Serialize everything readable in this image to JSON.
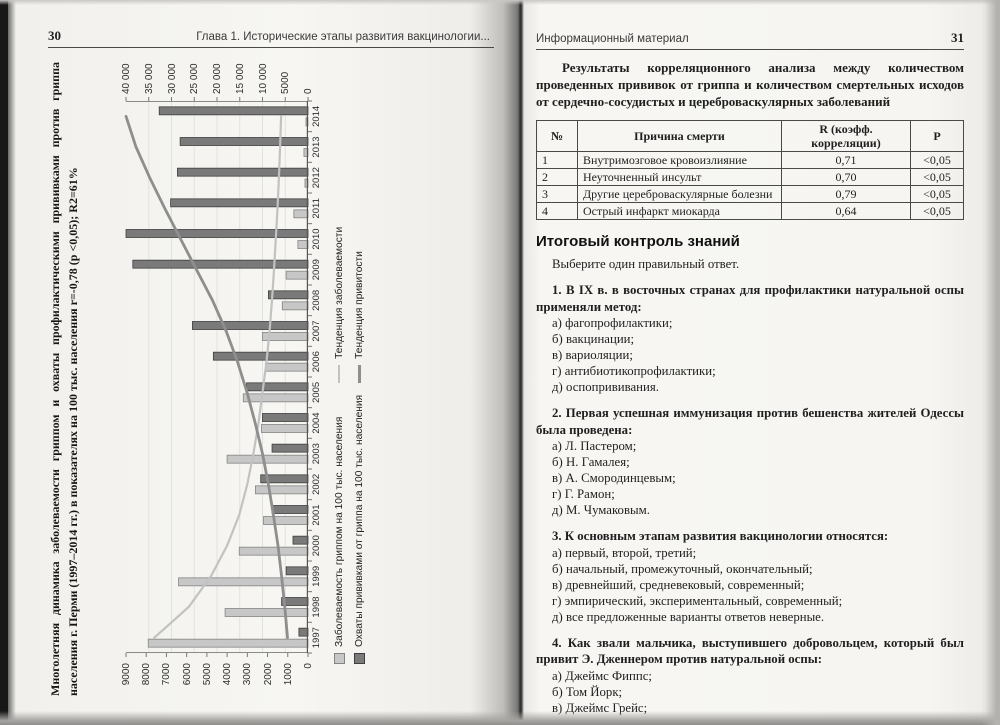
{
  "left_page": {
    "page_number": "30",
    "header": "Глава 1. Исторические этапы развития вакцинологии..."
  },
  "right_page": {
    "page_number": "31",
    "header": "Информационный материал",
    "intro": "Результаты корреляционного анализа между количеством проведенных прививок от гриппа и количеством смертельных исходов от сердечно-со­судистых и цереброваскулярных заболеваний",
    "table": {
      "columns": [
        "№",
        "Причина смерти",
        "R (коэфф. корреляции)",
        "Р"
      ],
      "rows": [
        [
          "1",
          "Внутримозговое кровоизлияние",
          "0,71",
          "<0,05"
        ],
        [
          "2",
          "Неуточненный инсульт",
          "0,70",
          "<0,05"
        ],
        [
          "3",
          "Другие цереброваскулярные болезни",
          "0,79",
          "<0,05"
        ],
        [
          "4",
          "Острый инфаркт миокарда",
          "0,64",
          "<0,05"
        ]
      ]
    },
    "quiz": {
      "heading": "Итоговый контроль знаний",
      "prompt": "Выберите один правильный ответ.",
      "questions": [
        {
          "q": "1. В IX в. в восточных странах для профилактики натуральной оспы применяли метод:",
          "options": [
            "а) фагопрофилактики;",
            "б) вакцинации;",
            "в) вариоляции;",
            "г) антибиотикопрофилактики;",
            "д) оспопрививания."
          ]
        },
        {
          "q": "2. Первая успешная иммунизация против бешенства жителей Одессы была проведена:",
          "options": [
            "а) Л. Пастером;",
            "б) Н. Гамалея;",
            "в) А. Смородинцевым;",
            "г) Г. Рамон;",
            "д) М. Чумаковым."
          ]
        },
        {
          "q": "3. К основным этапам развития вакцинологии относятся:",
          "options": [
            "а) первый, второй, третий;",
            "б) начальный, промежуточный, окончательный;",
            "в) древнейший, средневековый, современный;",
            "г) эмпирический, экспериментальный, современный;",
            "д) все предложенные варианты ответов неверные."
          ]
        },
        {
          "q": "4. Как звали мальчика, выступившего добровольцем, который был привит Э. Дженнером против натуральной оспы:",
          "options": [
            "а) Джеймс Фиппс;",
            "б) Том Йорк;",
            "в) Джеймс Грейс;"
          ]
        }
      ]
    }
  },
  "chart_data": {
    "type": "bar",
    "rotated_90deg_on_page": true,
    "title": "Многолетняя динамика заболеваемости гриппом и охваты профилактическими прививками против гриппа населения г. Перми (1997–2014 гг.) в показателях на 100 тыс. населения r=-0,78 (p <0,05); R2=61%",
    "categories": [
      "1997",
      "1998",
      "1999",
      "2000",
      "2001",
      "2002",
      "2003",
      "2004",
      "2005",
      "2006",
      "2007",
      "2008",
      "2009",
      "2010",
      "2011",
      "2012",
      "2013",
      "2014"
    ],
    "left_axis": {
      "min": 0,
      "max": 9000,
      "step": 1000,
      "ticks": [
        "9000",
        "8000",
        "7000",
        "6000",
        "5000",
        "4000",
        "3000",
        "2000",
        "1000",
        "0"
      ]
    },
    "right_axis": {
      "min": 0,
      "max": 40000,
      "step": 5000,
      "ticks": [
        "40 000",
        "35 000",
        "30 000",
        "25 000",
        "20 000",
        "15 000",
        "10 000",
        "5000",
        "0"
      ]
    },
    "series": [
      {
        "name": "Заболеваемость гриппом на 100 тыс. населения",
        "kind": "bar",
        "axis": "left",
        "values": [
          7900,
          4100,
          6400,
          3400,
          2200,
          2600,
          4000,
          2300,
          3200,
          2100,
          2250,
          1270,
          1080,
          500,
          700,
          150,
          200,
          100
        ]
      },
      {
        "name": "Охваты прививками от гриппа на 100 тыс. населения",
        "kind": "bar",
        "axis": "right",
        "values": [
          2000,
          5800,
          4800,
          3300,
          7900,
          10400,
          7900,
          10000,
          13500,
          20800,
          25400,
          8700,
          38500,
          40000,
          30200,
          28700,
          28100,
          32700
        ]
      },
      {
        "name": "Тенденция заболеваемости",
        "kind": "line",
        "axis": "left",
        "values": [
          7600,
          5900,
          4800,
          4000,
          3400,
          3000,
          2700,
          2450,
          2250,
          2050,
          1900,
          1780,
          1680,
          1590,
          1510,
          1440,
          1380,
          1330
        ]
      },
      {
        "name": "Тенденция привитости",
        "kind": "line",
        "axis": "right",
        "values": [
          4500,
          5100,
          5800,
          6600,
          7600,
          8700,
          10000,
          11600,
          13400,
          15500,
          18000,
          21000,
          24500,
          28000,
          31500,
          34800,
          37800,
          40000
        ]
      }
    ],
    "legend_position": "bottom",
    "colors": {
      "bar_light": "#c7c7c7",
      "bar_light_border": "#848484",
      "bar_dark": "#7a7a7a",
      "bar_dark_border": "#3f3f3f",
      "trend_light": "#c2c2c2",
      "trend_dark": "#8e8e8e"
    }
  }
}
